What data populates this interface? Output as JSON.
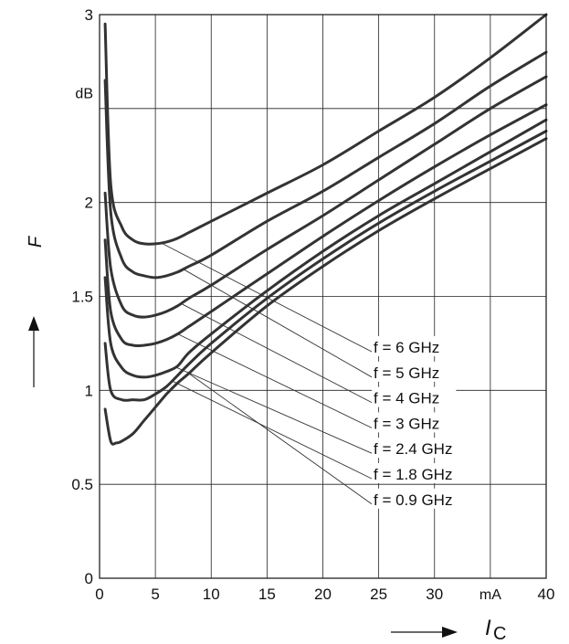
{
  "chart_data": {
    "type": "line",
    "title": "",
    "xlabel": "I",
    "xlabel_subscript": "C",
    "x_unit": "mA",
    "ylabel": "F",
    "y_unit": "dB",
    "xlim": [
      0,
      40
    ],
    "ylim": [
      0,
      3
    ],
    "xticks": [
      0,
      5,
      10,
      15,
      20,
      25,
      30,
      40
    ],
    "yticks": [
      0,
      0.5,
      1,
      1.5,
      2,
      3
    ],
    "ytick_labels": [
      "0",
      "0.5",
      "1",
      "1.5",
      "2",
      "3"
    ],
    "grid": true,
    "series": [
      {
        "name": "f = 6 GHz",
        "x": [
          0.5,
          1,
          2,
          3,
          4,
          5,
          6,
          7,
          8,
          10,
          15,
          20,
          25,
          30,
          35,
          40
        ],
        "y": [
          2.95,
          2.1,
          1.87,
          1.8,
          1.78,
          1.78,
          1.79,
          1.81,
          1.84,
          1.9,
          2.05,
          2.2,
          2.38,
          2.56,
          2.77,
          3.0
        ]
      },
      {
        "name": "f = 5 GHz",
        "x": [
          0.5,
          1,
          2,
          3,
          4,
          5,
          6,
          7,
          8,
          10,
          15,
          20,
          25,
          30,
          35,
          40
        ],
        "y": [
          2.65,
          1.95,
          1.7,
          1.63,
          1.61,
          1.6,
          1.61,
          1.63,
          1.66,
          1.72,
          1.9,
          2.06,
          2.24,
          2.42,
          2.62,
          2.8
        ]
      },
      {
        "name": "f = 4 GHz",
        "x": [
          0.5,
          1,
          2,
          3,
          4,
          5,
          6,
          7,
          8,
          10,
          15,
          20,
          25,
          30,
          35,
          40
        ],
        "y": [
          2.05,
          1.65,
          1.45,
          1.4,
          1.39,
          1.4,
          1.42,
          1.45,
          1.49,
          1.56,
          1.75,
          1.93,
          2.12,
          2.31,
          2.5,
          2.67
        ]
      },
      {
        "name": "f = 3 GHz",
        "x": [
          0.5,
          1,
          2,
          3,
          4,
          5,
          6,
          7,
          8,
          10,
          15,
          20,
          25,
          30,
          35,
          40
        ],
        "y": [
          1.8,
          1.42,
          1.27,
          1.24,
          1.24,
          1.25,
          1.27,
          1.3,
          1.34,
          1.42,
          1.62,
          1.82,
          2.01,
          2.19,
          2.36,
          2.52
        ]
      },
      {
        "name": "f = 2.4 GHz",
        "x": [
          0.5,
          1,
          2,
          3,
          4,
          5,
          6,
          7,
          8,
          10,
          15,
          20,
          25,
          30,
          35,
          40
        ],
        "y": [
          1.6,
          1.25,
          1.12,
          1.08,
          1.07,
          1.08,
          1.1,
          1.13,
          1.2,
          1.3,
          1.53,
          1.74,
          1.93,
          2.1,
          2.27,
          2.44
        ]
      },
      {
        "name": "f = 1.8 GHz",
        "x": [
          0.5,
          1,
          2,
          3,
          4,
          5,
          6,
          7,
          8,
          10,
          15,
          20,
          25,
          30,
          35,
          40
        ],
        "y": [
          1.25,
          1.0,
          0.95,
          0.95,
          0.95,
          0.98,
          1.02,
          1.08,
          1.14,
          1.25,
          1.49,
          1.7,
          1.89,
          2.06,
          2.22,
          2.38
        ]
      },
      {
        "name": "f = 0.9 GHz",
        "x": [
          0.5,
          1,
          1.5,
          2,
          3,
          4,
          5,
          6,
          7,
          8,
          10,
          15,
          20,
          25,
          30,
          35,
          40
        ],
        "y": [
          0.9,
          0.73,
          0.72,
          0.73,
          0.77,
          0.84,
          0.91,
          0.98,
          1.04,
          1.09,
          1.2,
          1.45,
          1.66,
          1.85,
          2.02,
          2.18,
          2.34
        ]
      }
    ]
  }
}
